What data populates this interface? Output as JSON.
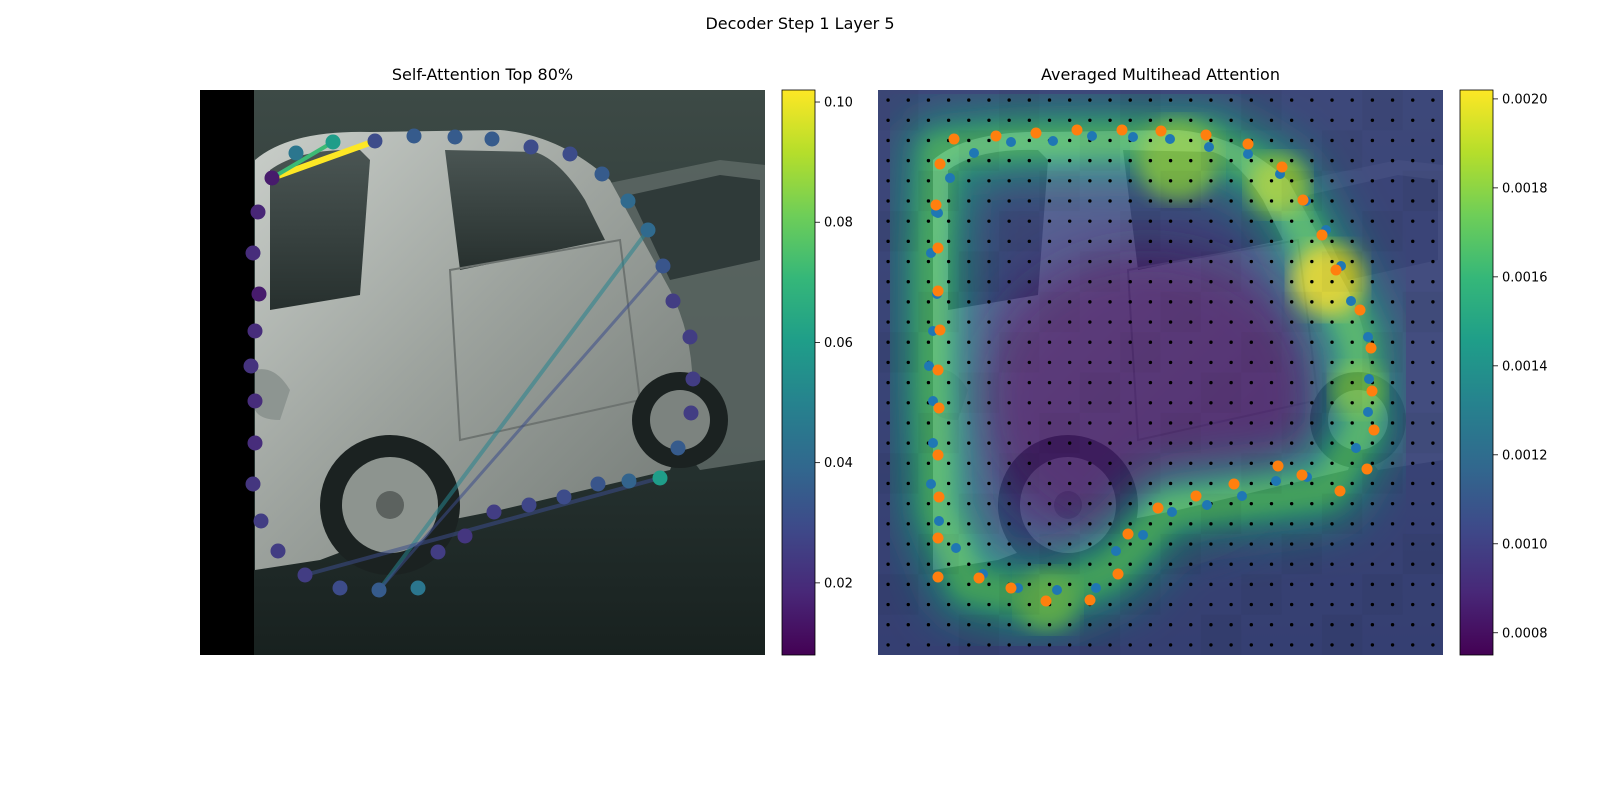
{
  "figure": {
    "title": "Decoder Step 1 Layer 5"
  },
  "colors": {
    "viridis": [
      "#440154",
      "#482878",
      "#3e4989",
      "#31688e",
      "#26828e",
      "#1f9e89",
      "#35b779",
      "#6ece58",
      "#b5de2b",
      "#fde725"
    ],
    "blue": "#1f77b4",
    "orange": "#ff7f0e",
    "grid_dot": "#000000"
  },
  "chart_data": [
    {
      "type": "scatter",
      "title": "Self-Attention Top 80%",
      "description_note": "",
      "background": "photo of a silver car",
      "colorbar": {
        "min": 0.008,
        "max": 0.102,
        "ticks": [
          0.02,
          0.04,
          0.06,
          0.08,
          0.1
        ],
        "tick_labels": [
          "0.02",
          "0.04",
          "0.06",
          "0.08",
          "0.10"
        ]
      },
      "points": [
        {
          "x": 72,
          "y": 88,
          "v": 0.015
        },
        {
          "x": 58,
          "y": 122,
          "v": 0.018
        },
        {
          "x": 53,
          "y": 163,
          "v": 0.02
        },
        {
          "x": 59,
          "y": 204,
          "v": 0.015
        },
        {
          "x": 55,
          "y": 241,
          "v": 0.02
        },
        {
          "x": 51,
          "y": 276,
          "v": 0.022
        },
        {
          "x": 55,
          "y": 311,
          "v": 0.02
        },
        {
          "x": 55,
          "y": 353,
          "v": 0.02
        },
        {
          "x": 53,
          "y": 394,
          "v": 0.023
        },
        {
          "x": 61,
          "y": 431,
          "v": 0.025
        },
        {
          "x": 78,
          "y": 461,
          "v": 0.025
        },
        {
          "x": 105,
          "y": 485,
          "v": 0.025
        },
        {
          "x": 140,
          "y": 498,
          "v": 0.03
        },
        {
          "x": 179,
          "y": 500,
          "v": 0.035
        },
        {
          "x": 218,
          "y": 498,
          "v": 0.045
        },
        {
          "x": 238,
          "y": 462,
          "v": 0.025
        },
        {
          "x": 265,
          "y": 446,
          "v": 0.023
        },
        {
          "x": 294,
          "y": 422,
          "v": 0.025
        },
        {
          "x": 329,
          "y": 415,
          "v": 0.028
        },
        {
          "x": 364,
          "y": 407,
          "v": 0.03
        },
        {
          "x": 398,
          "y": 394,
          "v": 0.033
        },
        {
          "x": 429,
          "y": 391,
          "v": 0.038
        },
        {
          "x": 460,
          "y": 388,
          "v": 0.06
        },
        {
          "x": 478,
          "y": 358,
          "v": 0.035
        },
        {
          "x": 491,
          "y": 323,
          "v": 0.025
        },
        {
          "x": 493,
          "y": 289,
          "v": 0.025
        },
        {
          "x": 490,
          "y": 247,
          "v": 0.025
        },
        {
          "x": 473,
          "y": 211,
          "v": 0.025
        },
        {
          "x": 463,
          "y": 176,
          "v": 0.033
        },
        {
          "x": 448,
          "y": 140,
          "v": 0.04
        },
        {
          "x": 428,
          "y": 111,
          "v": 0.04
        },
        {
          "x": 402,
          "y": 84,
          "v": 0.035
        },
        {
          "x": 370,
          "y": 64,
          "v": 0.03
        },
        {
          "x": 331,
          "y": 57,
          "v": 0.03
        },
        {
          "x": 292,
          "y": 49,
          "v": 0.035
        },
        {
          "x": 255,
          "y": 47,
          "v": 0.035
        },
        {
          "x": 214,
          "y": 46,
          "v": 0.035
        },
        {
          "x": 175,
          "y": 51,
          "v": 0.03
        },
        {
          "x": 133,
          "y": 52,
          "v": 0.06
        },
        {
          "x": 96,
          "y": 63,
          "v": 0.045
        }
      ],
      "lines": [
        {
          "from": 0,
          "to": 37,
          "v": 0.102,
          "w": 6
        },
        {
          "from": 0,
          "to": 38,
          "v": 0.072,
          "w": 4
        },
        {
          "from": 13,
          "to": 29,
          "v": 0.05,
          "w": 4
        },
        {
          "from": 11,
          "to": 22,
          "v": 0.03,
          "w": 4
        },
        {
          "from": 13,
          "to": 28,
          "v": 0.03,
          "w": 3
        }
      ]
    },
    {
      "type": "heatmap",
      "title": "Averaged Multihead Attention",
      "background": "photo of a silver car",
      "colorbar": {
        "min": 0.00075,
        "max": 0.00202,
        "ticks": [
          0.0008,
          0.001,
          0.0012,
          0.0014,
          0.0016,
          0.0018,
          0.002
        ],
        "tick_labels": [
          "0.0008",
          "0.0010",
          "0.0012",
          "0.0014",
          "0.0016",
          "0.0018",
          "0.0020"
        ]
      },
      "grid_size": 28,
      "heat_path": [
        {
          "x": 60,
          "y": 60
        },
        {
          "x": 140,
          "y": 52
        },
        {
          "x": 240,
          "y": 50
        },
        {
          "x": 330,
          "y": 52
        },
        {
          "x": 400,
          "y": 90
        },
        {
          "x": 445,
          "y": 175
        },
        {
          "x": 480,
          "y": 250
        },
        {
          "x": 485,
          "y": 340
        },
        {
          "x": 450,
          "y": 400
        },
        {
          "x": 370,
          "y": 410
        },
        {
          "x": 290,
          "y": 420
        },
        {
          "x": 235,
          "y": 480
        },
        {
          "x": 160,
          "y": 510
        },
        {
          "x": 90,
          "y": 495
        },
        {
          "x": 60,
          "y": 420
        },
        {
          "x": 55,
          "y": 300
        },
        {
          "x": 55,
          "y": 160
        }
      ],
      "blue_points": [
        {
          "x": 60,
          "y": 123
        },
        {
          "x": 72,
          "y": 88
        },
        {
          "x": 96,
          "y": 63
        },
        {
          "x": 133,
          "y": 52
        },
        {
          "x": 175,
          "y": 51
        },
        {
          "x": 214,
          "y": 46
        },
        {
          "x": 255,
          "y": 47
        },
        {
          "x": 292,
          "y": 49
        },
        {
          "x": 331,
          "y": 57
        },
        {
          "x": 370,
          "y": 64
        },
        {
          "x": 402,
          "y": 84
        },
        {
          "x": 428,
          "y": 111
        },
        {
          "x": 448,
          "y": 140
        },
        {
          "x": 463,
          "y": 176
        },
        {
          "x": 473,
          "y": 211
        },
        {
          "x": 490,
          "y": 247
        },
        {
          "x": 491,
          "y": 289
        },
        {
          "x": 490,
          "y": 322
        },
        {
          "x": 478,
          "y": 358
        },
        {
          "x": 429,
          "y": 387
        },
        {
          "x": 398,
          "y": 391
        },
        {
          "x": 364,
          "y": 406
        },
        {
          "x": 329,
          "y": 415
        },
        {
          "x": 294,
          "y": 422
        },
        {
          "x": 265,
          "y": 445
        },
        {
          "x": 238,
          "y": 461
        },
        {
          "x": 218,
          "y": 498
        },
        {
          "x": 179,
          "y": 500
        },
        {
          "x": 140,
          "y": 498
        },
        {
          "x": 105,
          "y": 484
        },
        {
          "x": 78,
          "y": 458
        },
        {
          "x": 61,
          "y": 431
        },
        {
          "x": 53,
          "y": 394
        },
        {
          "x": 55,
          "y": 353
        },
        {
          "x": 55,
          "y": 311
        },
        {
          "x": 51,
          "y": 276
        },
        {
          "x": 55,
          "y": 241
        },
        {
          "x": 59,
          "y": 204
        },
        {
          "x": 53,
          "y": 163
        },
        {
          "x": 58,
          "y": 122
        }
      ],
      "orange_points": [
        {
          "x": 62,
          "y": 74
        },
        {
          "x": 76,
          "y": 49
        },
        {
          "x": 118,
          "y": 46
        },
        {
          "x": 158,
          "y": 43
        },
        {
          "x": 199,
          "y": 40
        },
        {
          "x": 244,
          "y": 40
        },
        {
          "x": 283,
          "y": 41
        },
        {
          "x": 328,
          "y": 45
        },
        {
          "x": 370,
          "y": 54
        },
        {
          "x": 404,
          "y": 77
        },
        {
          "x": 425,
          "y": 110
        },
        {
          "x": 444,
          "y": 145
        },
        {
          "x": 458,
          "y": 180
        },
        {
          "x": 482,
          "y": 220
        },
        {
          "x": 493,
          "y": 258
        },
        {
          "x": 494,
          "y": 301
        },
        {
          "x": 496,
          "y": 340
        },
        {
          "x": 489,
          "y": 379
        },
        {
          "x": 462,
          "y": 401
        },
        {
          "x": 424,
          "y": 385
        },
        {
          "x": 400,
          "y": 376
        },
        {
          "x": 356,
          "y": 394
        },
        {
          "x": 318,
          "y": 406
        },
        {
          "x": 280,
          "y": 418
        },
        {
          "x": 250,
          "y": 444
        },
        {
          "x": 240,
          "y": 484
        },
        {
          "x": 212,
          "y": 510
        },
        {
          "x": 168,
          "y": 511
        },
        {
          "x": 133,
          "y": 498
        },
        {
          "x": 101,
          "y": 488
        },
        {
          "x": 60,
          "y": 487
        },
        {
          "x": 60,
          "y": 448
        },
        {
          "x": 61,
          "y": 407
        },
        {
          "x": 60,
          "y": 365
        },
        {
          "x": 61,
          "y": 318
        },
        {
          "x": 60,
          "y": 280
        },
        {
          "x": 62,
          "y": 240
        },
        {
          "x": 60,
          "y": 201
        },
        {
          "x": 60,
          "y": 158
        },
        {
          "x": 58,
          "y": 115
        }
      ]
    }
  ]
}
